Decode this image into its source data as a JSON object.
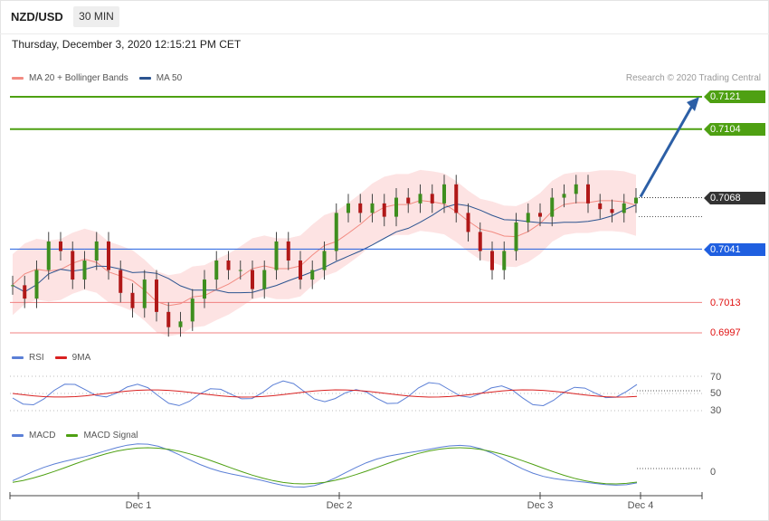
{
  "header": {
    "symbol": "NZD/USD",
    "timeframe": "30 MIN",
    "datetime": "Thursday, December 3, 2020 12:15:21 PM CET",
    "credit": "Research © 2020 Trading Central"
  },
  "legends": {
    "price": [
      {
        "label": "MA 20 + Bollinger Bands",
        "color": "#f28b82"
      },
      {
        "label": "MA 50",
        "color": "#2c5490"
      }
    ],
    "rsi": [
      {
        "label": "RSI",
        "color": "#5b7fd6"
      },
      {
        "label": "9MA",
        "color": "#d92020"
      }
    ],
    "macd": [
      {
        "label": "MACD",
        "color": "#5b7fd6"
      },
      {
        "label": "MACD Signal",
        "color": "#4ea012"
      }
    ]
  },
  "levels": {
    "r2": {
      "value": "0.7121",
      "color": "#4ea012"
    },
    "r1": {
      "value": "0.7104",
      "color": "#4ea012"
    },
    "last": {
      "value": "0.7068",
      "color": "#333333"
    },
    "pivot": {
      "value": "0.7041",
      "color": "#1f5fe0"
    },
    "s1": {
      "value": "0.7013",
      "color": "#e01010"
    },
    "s2": {
      "value": "0.6997",
      "color": "#e01010"
    }
  },
  "rsi_ticks": [
    "70",
    "50",
    "30"
  ],
  "macd_ticks": [
    "0"
  ],
  "x_ticks": [
    "Dec 1",
    "Dec 2",
    "Dec 3",
    "Dec 4"
  ],
  "chart_data": [
    {
      "type": "candlestick",
      "title": "NZD/USD 30 MIN",
      "ylim": [
        0.6983,
        0.7137
      ],
      "candles_close_approx": [
        0.7022,
        0.7015,
        0.703,
        0.7045,
        0.704,
        0.7025,
        0.7035,
        0.7045,
        0.703,
        0.7018,
        0.701,
        0.7025,
        0.7008,
        0.7,
        0.7003,
        0.7015,
        0.7025,
        0.7035,
        0.703,
        0.703,
        0.702,
        0.703,
        0.7045,
        0.7035,
        0.7025,
        0.703,
        0.704,
        0.706,
        0.7065,
        0.706,
        0.7065,
        0.7058,
        0.7068,
        0.7065,
        0.707,
        0.7065,
        0.7075,
        0.706,
        0.705,
        0.704,
        0.703,
        0.704,
        0.7055,
        0.706,
        0.7058,
        0.7068,
        0.707,
        0.7075,
        0.7065,
        0.7062,
        0.706,
        0.7065,
        0.7068
      ],
      "ma20": "upper envelope band with mid line",
      "ma50": "slow trend line",
      "projection": {
        "from": 0.7068,
        "to": 0.7121
      }
    },
    {
      "type": "line",
      "title": "RSI",
      "series": [
        {
          "name": "RSI"
        },
        {
          "name": "9MA"
        }
      ],
      "ticks": [
        70,
        50,
        30
      ]
    },
    {
      "type": "line",
      "title": "MACD",
      "series": [
        {
          "name": "MACD"
        },
        {
          "name": "MACD Signal"
        }
      ],
      "ticks": [
        0
      ]
    }
  ]
}
